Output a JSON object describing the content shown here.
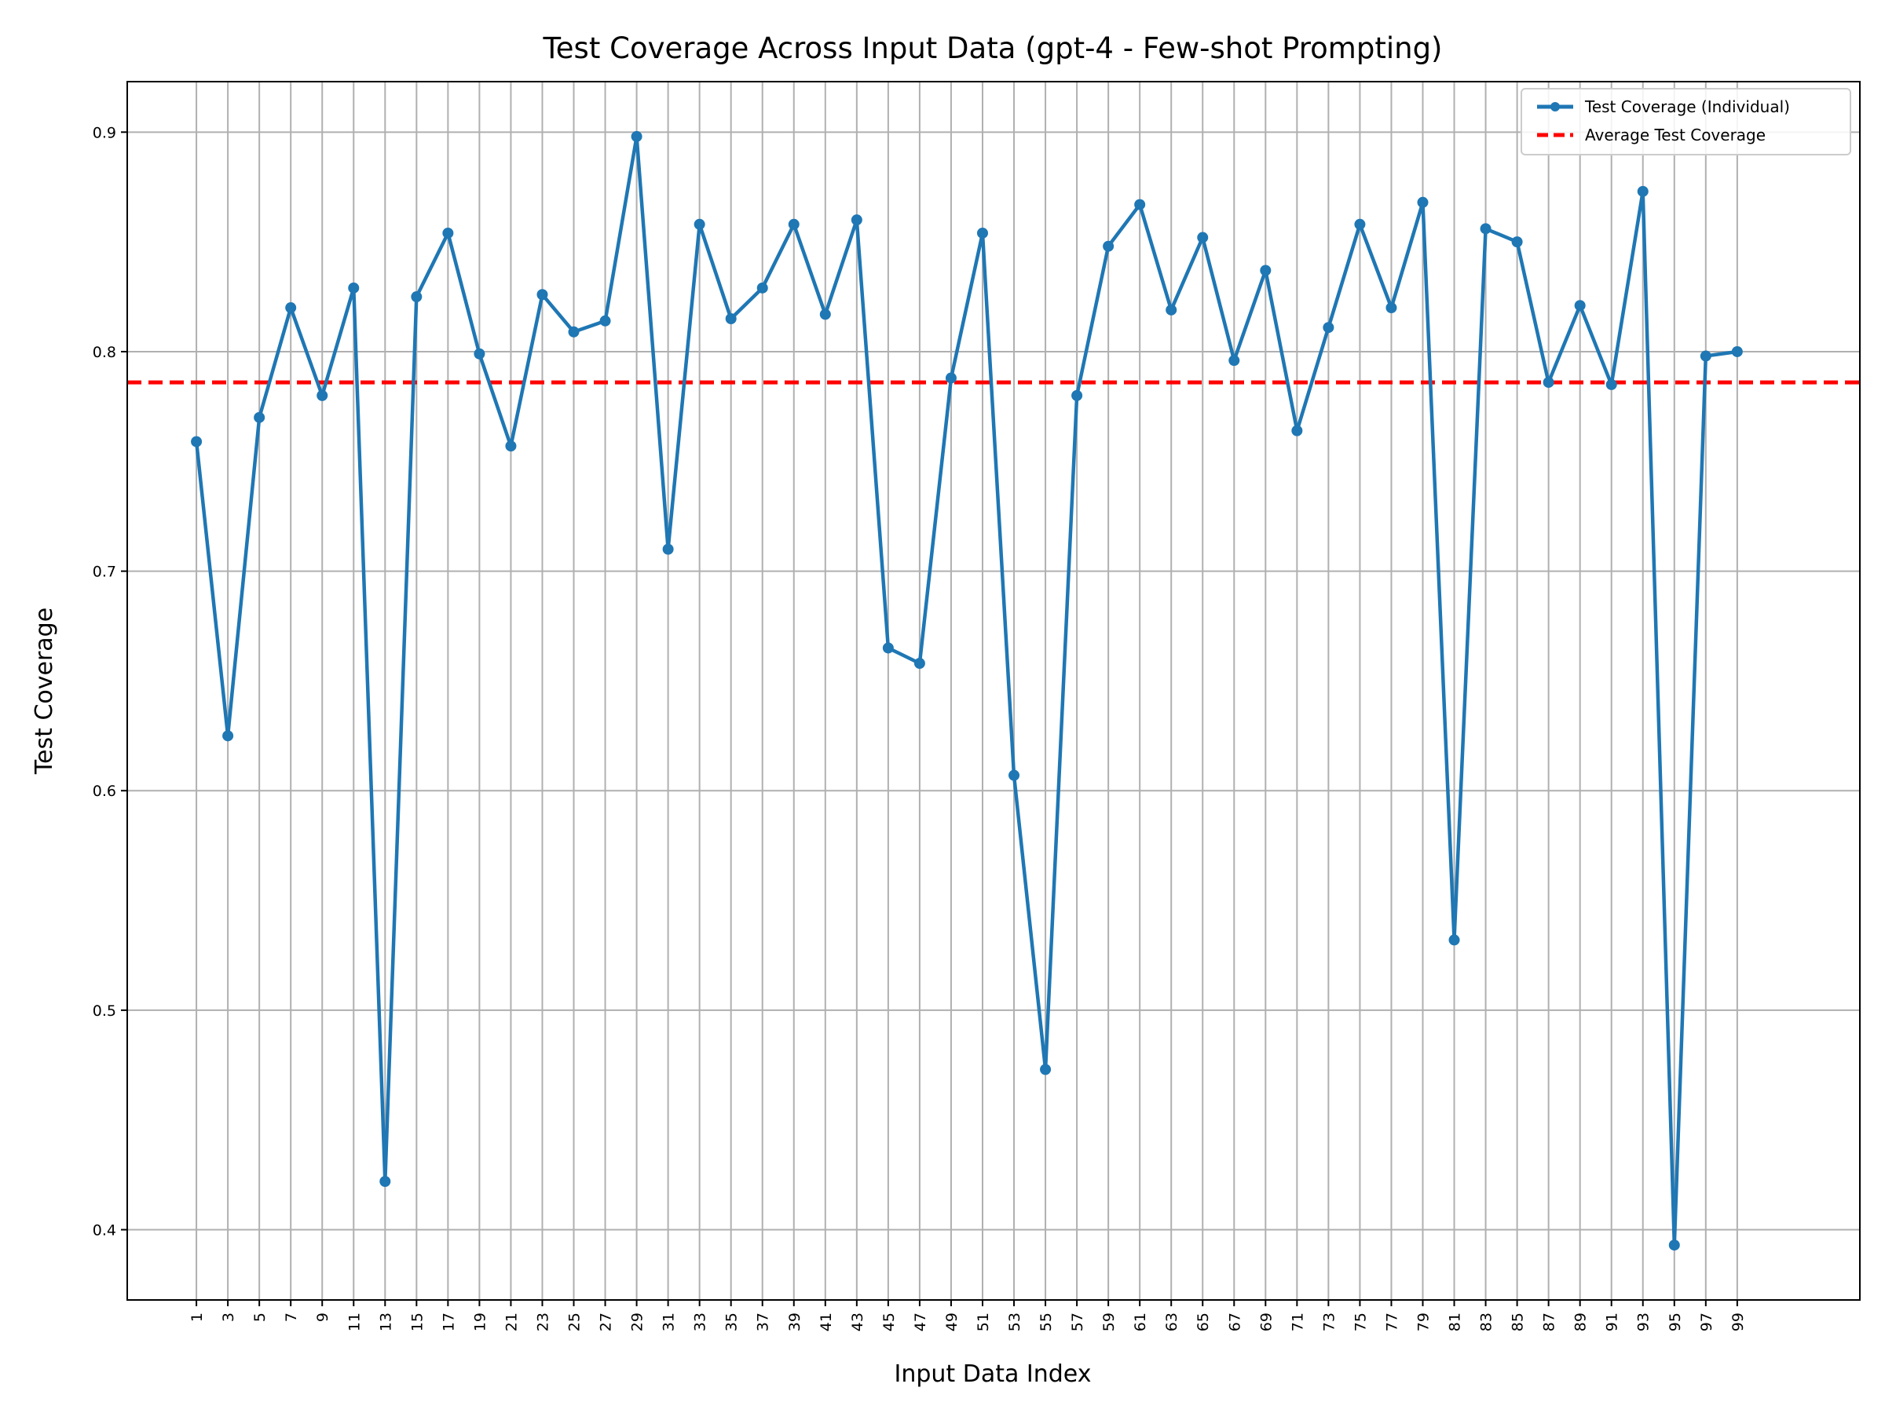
{
  "chart_data": {
    "type": "line",
    "title": "Test Coverage Across Input Data (gpt-4 - Few-shot Prompting)",
    "xlabel": "Input Data Index",
    "ylabel": "Test Coverage",
    "x": [
      1,
      3,
      5,
      7,
      9,
      11,
      13,
      15,
      17,
      19,
      21,
      23,
      25,
      27,
      29,
      31,
      33,
      35,
      37,
      39,
      41,
      43,
      45,
      47,
      49,
      51,
      53,
      55,
      57,
      59,
      61,
      63,
      65,
      67,
      69,
      71,
      73,
      75,
      77,
      79,
      81,
      83,
      85,
      87,
      89,
      91,
      93,
      95,
      97,
      99
    ],
    "x_ticks": [
      "1",
      "3",
      "5",
      "7",
      "9",
      "11",
      "13",
      "15",
      "17",
      "19",
      "21",
      "23",
      "25",
      "27",
      "29",
      "31",
      "33",
      "35",
      "37",
      "39",
      "41",
      "43",
      "45",
      "47",
      "49",
      "51",
      "53",
      "55",
      "57",
      "59",
      "61",
      "63",
      "65",
      "67",
      "69",
      "71",
      "73",
      "75",
      "77",
      "79",
      "81",
      "83",
      "85",
      "87",
      "89",
      "91",
      "93",
      "95",
      "97",
      "99"
    ],
    "xlim": [
      -3.4,
      106.8
    ],
    "ylim": [
      0.368,
      0.923
    ],
    "y_ticks": [
      0.4,
      0.5,
      0.6,
      0.7,
      0.8,
      0.9
    ],
    "y_tick_labels": [
      "0.4",
      "0.5",
      "0.6",
      "0.7",
      "0.8",
      "0.9"
    ],
    "series": [
      {
        "name": "Test Coverage (Individual)",
        "color": "#1f77b4",
        "marker": "circle",
        "values": [
          0.759,
          0.625,
          0.77,
          0.82,
          0.78,
          0.829,
          0.422,
          0.825,
          0.854,
          0.799,
          0.757,
          0.826,
          0.809,
          0.814,
          0.898,
          0.71,
          0.858,
          0.815,
          0.829,
          0.858,
          0.817,
          0.86,
          0.665,
          0.658,
          0.788,
          0.854,
          0.607,
          0.473,
          0.78,
          0.848,
          0.867,
          0.819,
          0.852,
          0.796,
          0.837,
          0.764,
          0.811,
          0.858,
          0.82,
          0.868,
          0.532,
          0.856,
          0.85,
          0.786,
          0.821,
          0.785,
          0.873,
          0.393,
          0.798,
          0.8
        ]
      }
    ],
    "reference_lines": [
      {
        "name": "Average Test Coverage",
        "y": 0.786,
        "color": "#ff0000",
        "style": "dashed"
      }
    ],
    "grid": true,
    "legend": "top-right"
  }
}
